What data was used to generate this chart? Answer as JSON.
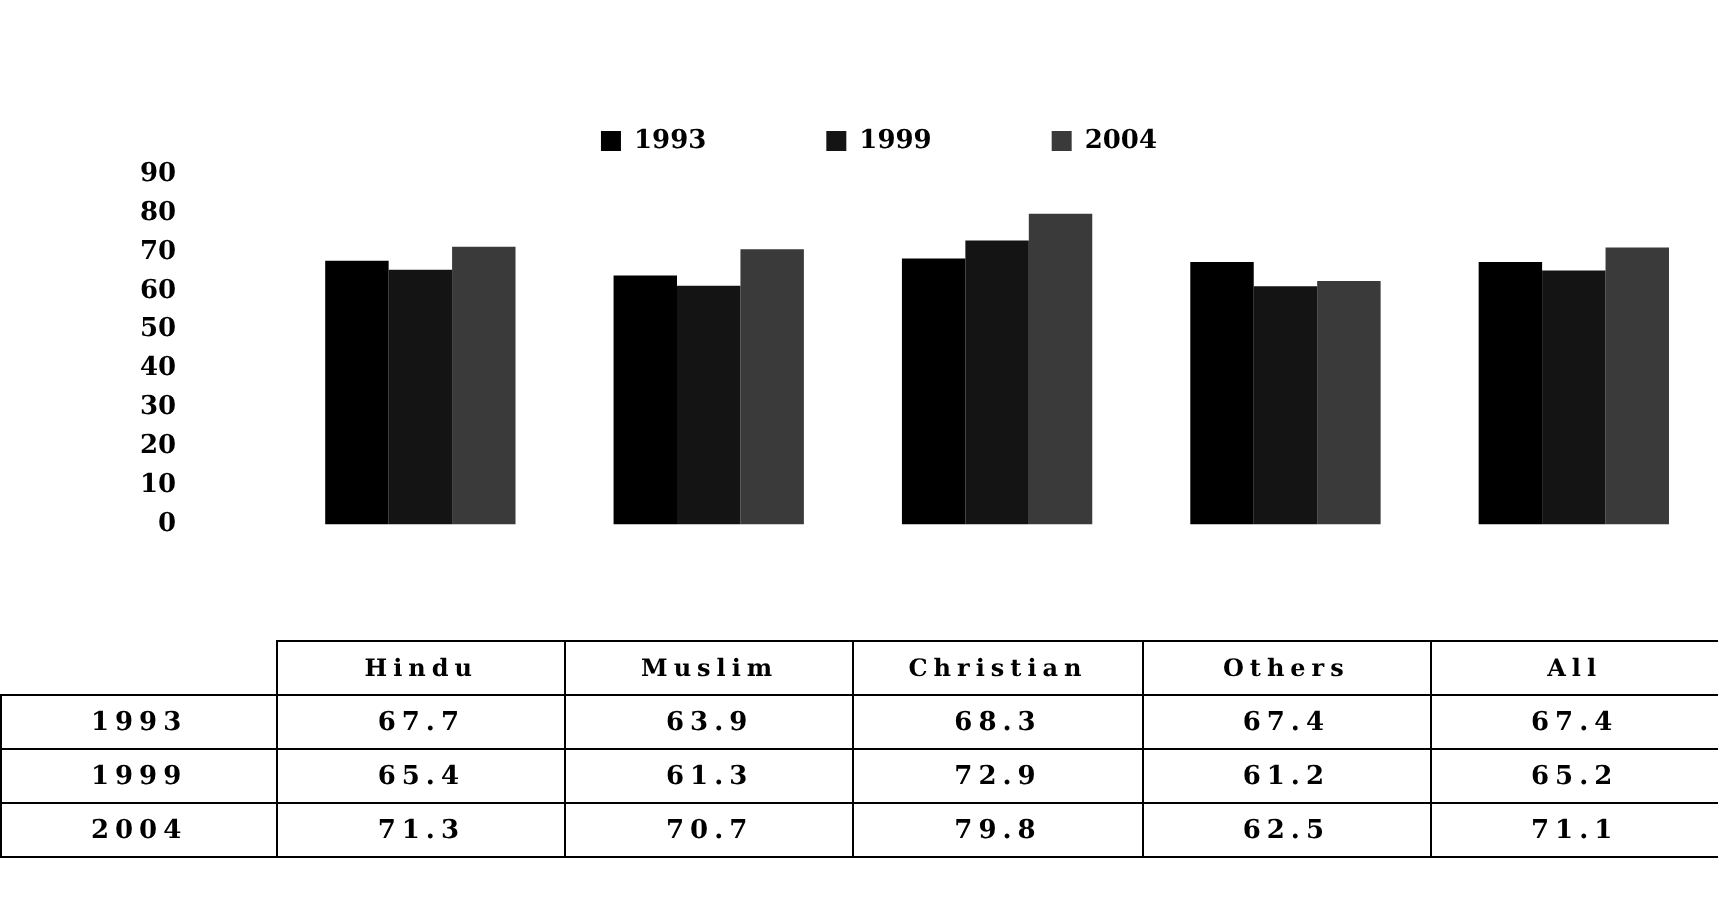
{
  "chart_data": {
    "type": "bar",
    "categories": [
      "Hindu",
      "Muslim",
      "Christian",
      "Others",
      "All"
    ],
    "series": [
      {
        "name": "1993",
        "color": "#000000",
        "values": [
          67.7,
          63.9,
          68.3,
          67.4,
          67.4
        ]
      },
      {
        "name": "1999",
        "color": "#141414",
        "values": [
          65.4,
          61.3,
          72.9,
          61.2,
          65.2
        ]
      },
      {
        "name": "2004",
        "color": "#3a3a3a",
        "values": [
          71.3,
          70.7,
          79.8,
          62.5,
          71.1
        ]
      }
    ],
    "ylim": [
      0,
      90
    ],
    "yticks": [
      0,
      10,
      20,
      30,
      40,
      50,
      60,
      70,
      80,
      90
    ],
    "grid": false,
    "legend": "top",
    "data_labels": true
  }
}
